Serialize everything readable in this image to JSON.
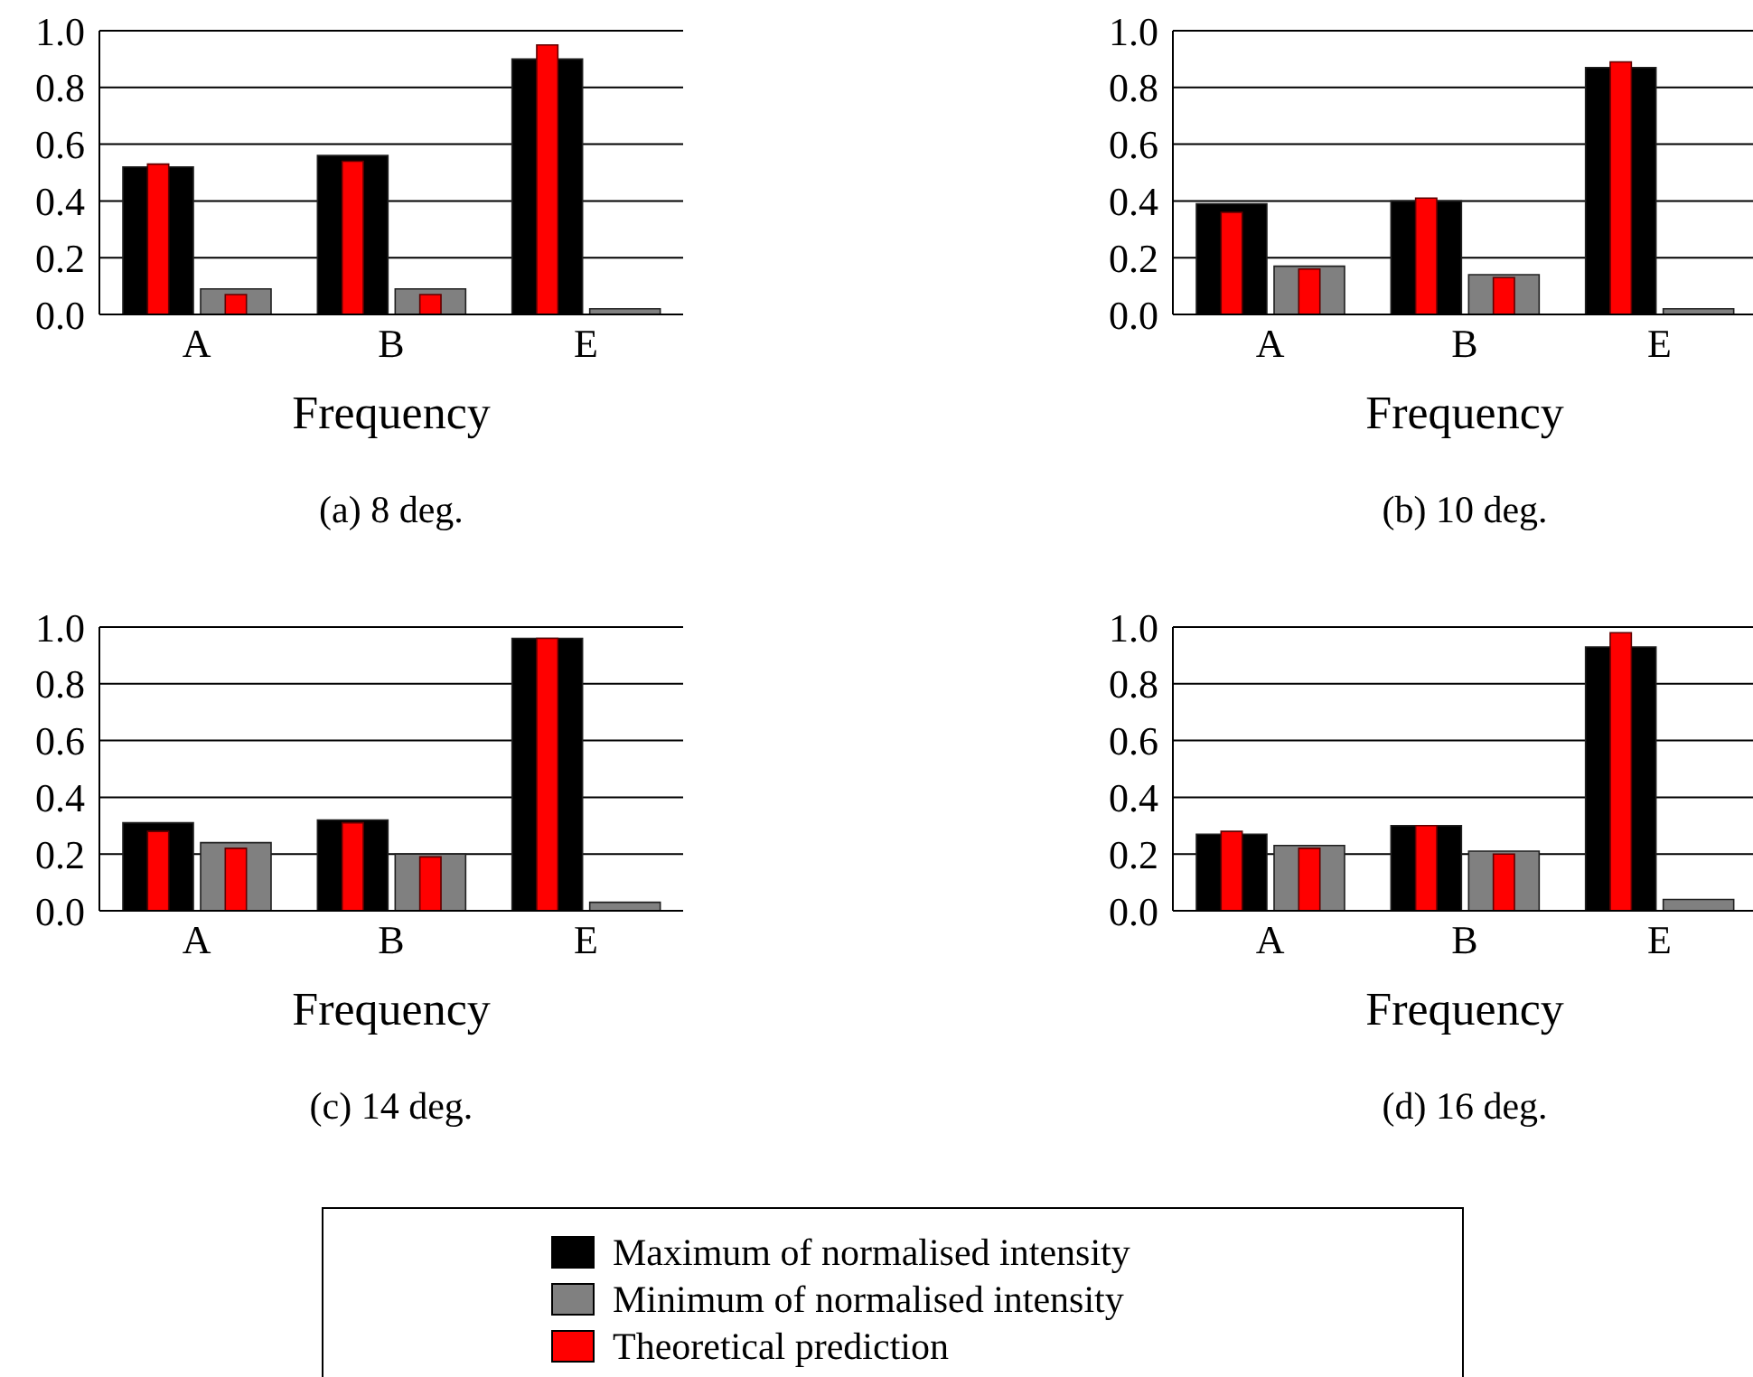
{
  "chart_data": [
    {
      "type": "bar",
      "title": "(a) 8 deg.",
      "xlabel": "Frequency",
      "categories": [
        "A",
        "B",
        "E"
      ],
      "ylim": [
        0,
        1
      ],
      "yticks": [
        {
          "value": 0,
          "label": "0.0"
        },
        {
          "value": 0.2,
          "label": "0.2"
        },
        {
          "value": 0.4,
          "label": "0.4"
        },
        {
          "value": 0.6,
          "label": "0.6"
        },
        {
          "value": 0.8,
          "label": "0.8"
        },
        {
          "value": 1,
          "label": "1.0"
        }
      ],
      "grid": "y",
      "legend": "bottom",
      "series": [
        {
          "name": "Maximum of normalised intensity",
          "color": "#000000",
          "values": [
            0.52,
            0.56,
            0.9
          ]
        },
        {
          "name": "Minimum of normalised intensity",
          "color": "#808080",
          "values": [
            0.09,
            0.09,
            0.02
          ]
        },
        {
          "name": "Theoretical prediction",
          "color": "#ff0000",
          "values": [
            0.53,
            0.54,
            0.95
          ]
        },
        {
          "color": "#ff0000",
          "values": [
            0.07,
            0.07,
            null
          ]
        }
      ]
    },
    {
      "type": "bar",
      "title": "(b) 10 deg.",
      "xlabel": "Frequency",
      "categories": [
        "A",
        "B",
        "E"
      ],
      "ylim": [
        0,
        1
      ],
      "yticks": [
        {
          "value": 0,
          "label": "0.0"
        },
        {
          "value": 0.2,
          "label": "0.2"
        },
        {
          "value": 0.4,
          "label": "0.4"
        },
        {
          "value": 0.6,
          "label": "0.6"
        },
        {
          "value": 0.8,
          "label": "0.8"
        },
        {
          "value": 1,
          "label": "1.0"
        }
      ],
      "grid": "y",
      "legend": "bottom",
      "series": [
        {
          "name": "Maximum of normalised intensity",
          "color": "#000000",
          "values": [
            0.39,
            0.4,
            0.87
          ]
        },
        {
          "name": "Minimum of normalised intensity",
          "color": "#808080",
          "values": [
            0.17,
            0.14,
            0.02
          ]
        },
        {
          "name": "Theoretical prediction",
          "color": "#ff0000",
          "values": [
            0.36,
            0.41,
            0.89
          ]
        },
        {
          "color": "#ff0000",
          "values": [
            0.16,
            0.13,
            null
          ]
        }
      ]
    },
    {
      "type": "bar",
      "title": "(c) 14 deg.",
      "xlabel": "Frequency",
      "categories": [
        "A",
        "B",
        "E"
      ],
      "ylim": [
        0,
        1
      ],
      "yticks": [
        {
          "value": 0,
          "label": "0.0"
        },
        {
          "value": 0.2,
          "label": "0.2"
        },
        {
          "value": 0.4,
          "label": "0.4"
        },
        {
          "value": 0.6,
          "label": "0.6"
        },
        {
          "value": 0.8,
          "label": "0.8"
        },
        {
          "value": 1,
          "label": "1.0"
        }
      ],
      "grid": "y",
      "legend": "bottom",
      "series": [
        {
          "name": "Maximum of normalised intensity",
          "color": "#000000",
          "values": [
            0.31,
            0.32,
            0.96
          ]
        },
        {
          "name": "Minimum of normalised intensity",
          "color": "#808080",
          "values": [
            0.24,
            0.2,
            0.03
          ]
        },
        {
          "name": "Theoretical prediction",
          "color": "#ff0000",
          "values": [
            0.28,
            0.31,
            0.96
          ]
        },
        {
          "color": "#ff0000",
          "values": [
            0.22,
            0.19,
            null
          ]
        }
      ]
    },
    {
      "type": "bar",
      "title": "(d) 16 deg.",
      "xlabel": "Frequency",
      "categories": [
        "A",
        "B",
        "E"
      ],
      "ylim": [
        0,
        1
      ],
      "yticks": [
        {
          "value": 0,
          "label": "0.0"
        },
        {
          "value": 0.2,
          "label": "0.2"
        },
        {
          "value": 0.4,
          "label": "0.4"
        },
        {
          "value": 0.6,
          "label": "0.6"
        },
        {
          "value": 0.8,
          "label": "0.8"
        },
        {
          "value": 1,
          "label": "1.0"
        }
      ],
      "grid": "y",
      "legend": "bottom",
      "series": [
        {
          "name": "Maximum of normalised intensity",
          "color": "#000000",
          "values": [
            0.27,
            0.3,
            0.93
          ]
        },
        {
          "name": "Minimum of normalised intensity",
          "color": "#808080",
          "values": [
            0.23,
            0.21,
            0.04
          ]
        },
        {
          "name": "Theoretical prediction",
          "color": "#ff0000",
          "values": [
            0.28,
            0.3,
            0.98
          ]
        },
        {
          "color": "#ff0000",
          "values": [
            0.22,
            0.2,
            null
          ]
        }
      ]
    }
  ]
}
